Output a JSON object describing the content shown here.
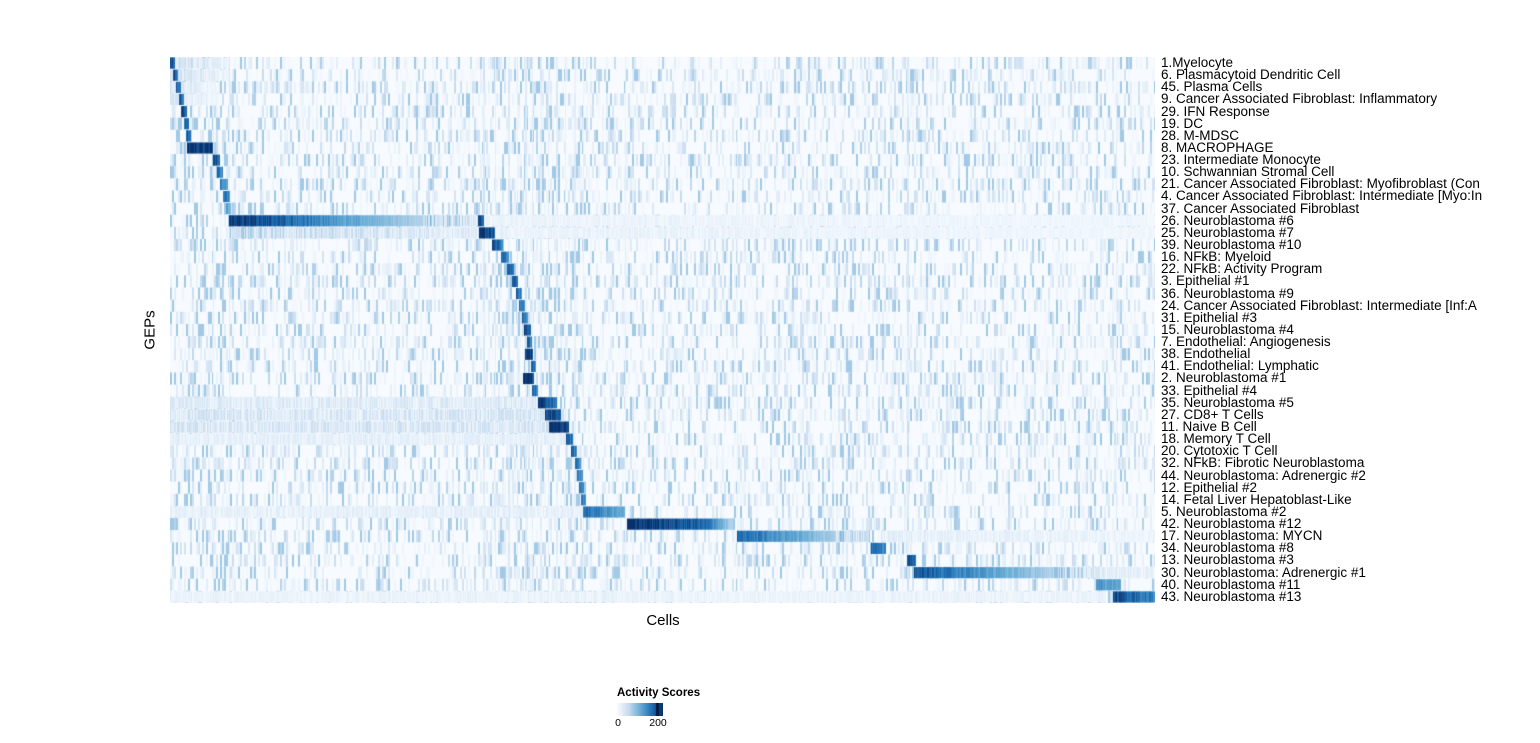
{
  "chart_data": {
    "type": "heatmap",
    "title": "",
    "xlabel": "Cells",
    "ylabel": "GEPs",
    "grid": false,
    "legend_position": "bottom",
    "colorbar": {
      "title": "Activity Scores",
      "min": 0,
      "max": 200,
      "min_label": "0",
      "max_label": "200",
      "marker_frac": 0.84
    },
    "colormap": {
      "name": "Blues",
      "stops": [
        "#f7fbff",
        "#c6dbef",
        "#6baed6",
        "#2171b5",
        "#08306b"
      ]
    },
    "rows": [
      "1.Myelocyte",
      "6. Plasmacytoid Dendritic Cell",
      "45. Plasma Cells",
      "9. Cancer Associated Fibroblast: Inflammatory",
      "29. IFN Response",
      "19. DC",
      "28. M-MDSC",
      "8. MACROPHAGE",
      "23. Intermediate Monocyte",
      "10. Schwannian Stromal Cell",
      "21. Cancer Associated Fibroblast: Myofibroblast (Con",
      "4. Cancer Associated Fibroblast: Intermediate [Myo:In",
      "37. Cancer Associated Fibroblast",
      "26. Neuroblastoma #6",
      "25. Neuroblastoma #7",
      "39. Neuroblastoma #10",
      "16. NFkB: Myeloid",
      "22. NFkB: Activity Program",
      "3. Epithelial #1",
      "36. Neuroblastoma #9",
      "24. Cancer Associated Fibroblast: Intermediate [Inf:A",
      "31. Epithelial #3",
      "15. Neuroblastoma #4",
      "7. Endothelial: Angiogenesis",
      "38. Endothelial",
      "41. Endothelial: Lymphatic",
      "2. Neuroblastoma #1",
      "33. Epithelial #4",
      "35. Neuroblastoma #5",
      "27. CD8+ T Cells",
      "11. Naive B Cell",
      "18. Memory T Cell",
      "20. Cytotoxic T Cell",
      "32. NFkB: Fibrotic Neuroblastoma",
      "44. Neuroblastoma: Adrenergic #2",
      "12. Epithelial #2",
      "14. Fetal Liver Hepatoblast-Like",
      "5. Neuroblastoma #2",
      "42. Neuroblastoma #12",
      "17. Neuroblastoma: MYCN",
      "34. Neuroblastoma #8",
      "13. Neuroblastoma #3",
      "30. Neuroblastoma: Adrenergic #1",
      "40. Neuroblastoma #11",
      "43. Neuroblastoma #13"
    ],
    "blocks_format": [
      "row_index",
      "x_start_frac",
      "x_end_frac",
      "value_start",
      "value_end"
    ],
    "value_scale": "fraction of colorbar max (200)",
    "blocks": [
      [
        0,
        0.0,
        0.06,
        0.2,
        0.04
      ],
      [
        1,
        0.0,
        0.06,
        0.16,
        0.04
      ],
      [
        2,
        0.0,
        0.05,
        0.12,
        0.03
      ],
      [
        3,
        0.0,
        0.05,
        0.12,
        0.03
      ],
      [
        13,
        0.315,
        1.0,
        0.05,
        0.03
      ],
      [
        14,
        0.06,
        0.314,
        0.22,
        0.08
      ],
      [
        14,
        0.33,
        1.0,
        0.06,
        0.03
      ],
      [
        28,
        0.0,
        0.374,
        0.1,
        0.1
      ],
      [
        29,
        0.0,
        0.381,
        0.13,
        0.13
      ],
      [
        30,
        0.0,
        0.385,
        0.13,
        0.13
      ],
      [
        31,
        0.0,
        0.402,
        0.07,
        0.07
      ],
      [
        37,
        0.0,
        0.419,
        0.07,
        0.07
      ],
      [
        39,
        0.722,
        1.0,
        0.08,
        0.04
      ],
      [
        42,
        0.94,
        1.0,
        0.1,
        0.06
      ],
      [
        44,
        0.0,
        0.95,
        0.05,
        0.05
      ],
      [
        0,
        0.0,
        0.005,
        0.95,
        0.75
      ],
      [
        1,
        0.003,
        0.008,
        0.9,
        0.7
      ],
      [
        2,
        0.006,
        0.011,
        0.85,
        0.7
      ],
      [
        3,
        0.009,
        0.014,
        0.85,
        0.7
      ],
      [
        4,
        0.011,
        0.017,
        0.9,
        0.75
      ],
      [
        5,
        0.014,
        0.019,
        0.8,
        0.7
      ],
      [
        6,
        0.016,
        0.021,
        0.85,
        0.75
      ],
      [
        7,
        0.017,
        0.044,
        1.0,
        0.9
      ],
      [
        8,
        0.044,
        0.051,
        0.9,
        0.75
      ],
      [
        9,
        0.048,
        0.054,
        0.8,
        0.65
      ],
      [
        10,
        0.051,
        0.059,
        0.7,
        0.55
      ],
      [
        11,
        0.054,
        0.061,
        0.75,
        0.6
      ],
      [
        12,
        0.057,
        0.062,
        0.55,
        0.45
      ],
      [
        13,
        0.06,
        0.18,
        1.0,
        0.55
      ],
      [
        13,
        0.18,
        0.313,
        0.55,
        0.12
      ],
      [
        13,
        0.313,
        0.319,
        0.85,
        0.85
      ],
      [
        14,
        0.314,
        0.33,
        0.95,
        0.85
      ],
      [
        15,
        0.327,
        0.338,
        0.85,
        0.7
      ],
      [
        16,
        0.336,
        0.344,
        0.8,
        0.65
      ],
      [
        17,
        0.342,
        0.349,
        0.8,
        0.7
      ],
      [
        18,
        0.347,
        0.353,
        0.85,
        0.7
      ],
      [
        19,
        0.351,
        0.357,
        0.8,
        0.65
      ],
      [
        20,
        0.354,
        0.36,
        0.75,
        0.6
      ],
      [
        21,
        0.357,
        0.363,
        0.8,
        0.65
      ],
      [
        22,
        0.359,
        0.366,
        0.9,
        0.75
      ],
      [
        23,
        0.362,
        0.368,
        0.8,
        0.65
      ],
      [
        24,
        0.36,
        0.369,
        0.95,
        0.85
      ],
      [
        25,
        0.366,
        0.372,
        0.8,
        0.65
      ],
      [
        26,
        0.358,
        0.37,
        1.0,
        0.9
      ],
      [
        27,
        0.368,
        0.374,
        0.8,
        0.65
      ],
      [
        28,
        0.374,
        0.393,
        0.95,
        0.7
      ],
      [
        29,
        0.381,
        0.397,
        0.92,
        0.8
      ],
      [
        30,
        0.385,
        0.405,
        1.0,
        0.95
      ],
      [
        31,
        0.402,
        0.409,
        0.85,
        0.7
      ],
      [
        32,
        0.407,
        0.413,
        0.8,
        0.65
      ],
      [
        33,
        0.411,
        0.417,
        0.75,
        0.6
      ],
      [
        34,
        0.413,
        0.419,
        0.7,
        0.6
      ],
      [
        35,
        0.415,
        0.42,
        0.7,
        0.6
      ],
      [
        36,
        0.417,
        0.422,
        0.75,
        0.6
      ],
      [
        37,
        0.419,
        0.462,
        0.75,
        0.5
      ],
      [
        38,
        0.464,
        0.54,
        1.0,
        0.8
      ],
      [
        38,
        0.54,
        0.574,
        0.8,
        0.25
      ],
      [
        39,
        0.576,
        0.64,
        0.8,
        0.5
      ],
      [
        39,
        0.64,
        0.71,
        0.5,
        0.12
      ],
      [
        40,
        0.712,
        0.727,
        0.8,
        0.65
      ],
      [
        41,
        0.748,
        0.757,
        0.9,
        0.8
      ],
      [
        42,
        0.755,
        0.86,
        0.85,
        0.45
      ],
      [
        42,
        0.86,
        0.94,
        0.45,
        0.12
      ],
      [
        43,
        0.94,
        0.965,
        0.6,
        0.5
      ],
      [
        44,
        0.957,
        1.0,
        0.9,
        0.65
      ]
    ],
    "streak_columns_format": [
      "x_frac",
      "width_px",
      "intensity"
    ],
    "streak_columns": [
      [
        0.044,
        1,
        0.1
      ],
      [
        0.06,
        1,
        0.12
      ],
      [
        0.318,
        2,
        0.18
      ],
      [
        0.33,
        1,
        0.12
      ],
      [
        0.343,
        2,
        0.15
      ],
      [
        0.352,
        1,
        0.12
      ],
      [
        0.36,
        2,
        0.15
      ],
      [
        0.368,
        1,
        0.12
      ],
      [
        0.376,
        2,
        0.14
      ],
      [
        0.384,
        1,
        0.12
      ],
      [
        0.392,
        2,
        0.13
      ],
      [
        0.401,
        1,
        0.12
      ],
      [
        0.41,
        2,
        0.13
      ],
      [
        0.419,
        1,
        0.1
      ],
      [
        0.462,
        1,
        0.1
      ],
      [
        0.576,
        1,
        0.08
      ],
      [
        0.748,
        2,
        0.2
      ],
      [
        0.96,
        1,
        0.1
      ]
    ]
  }
}
